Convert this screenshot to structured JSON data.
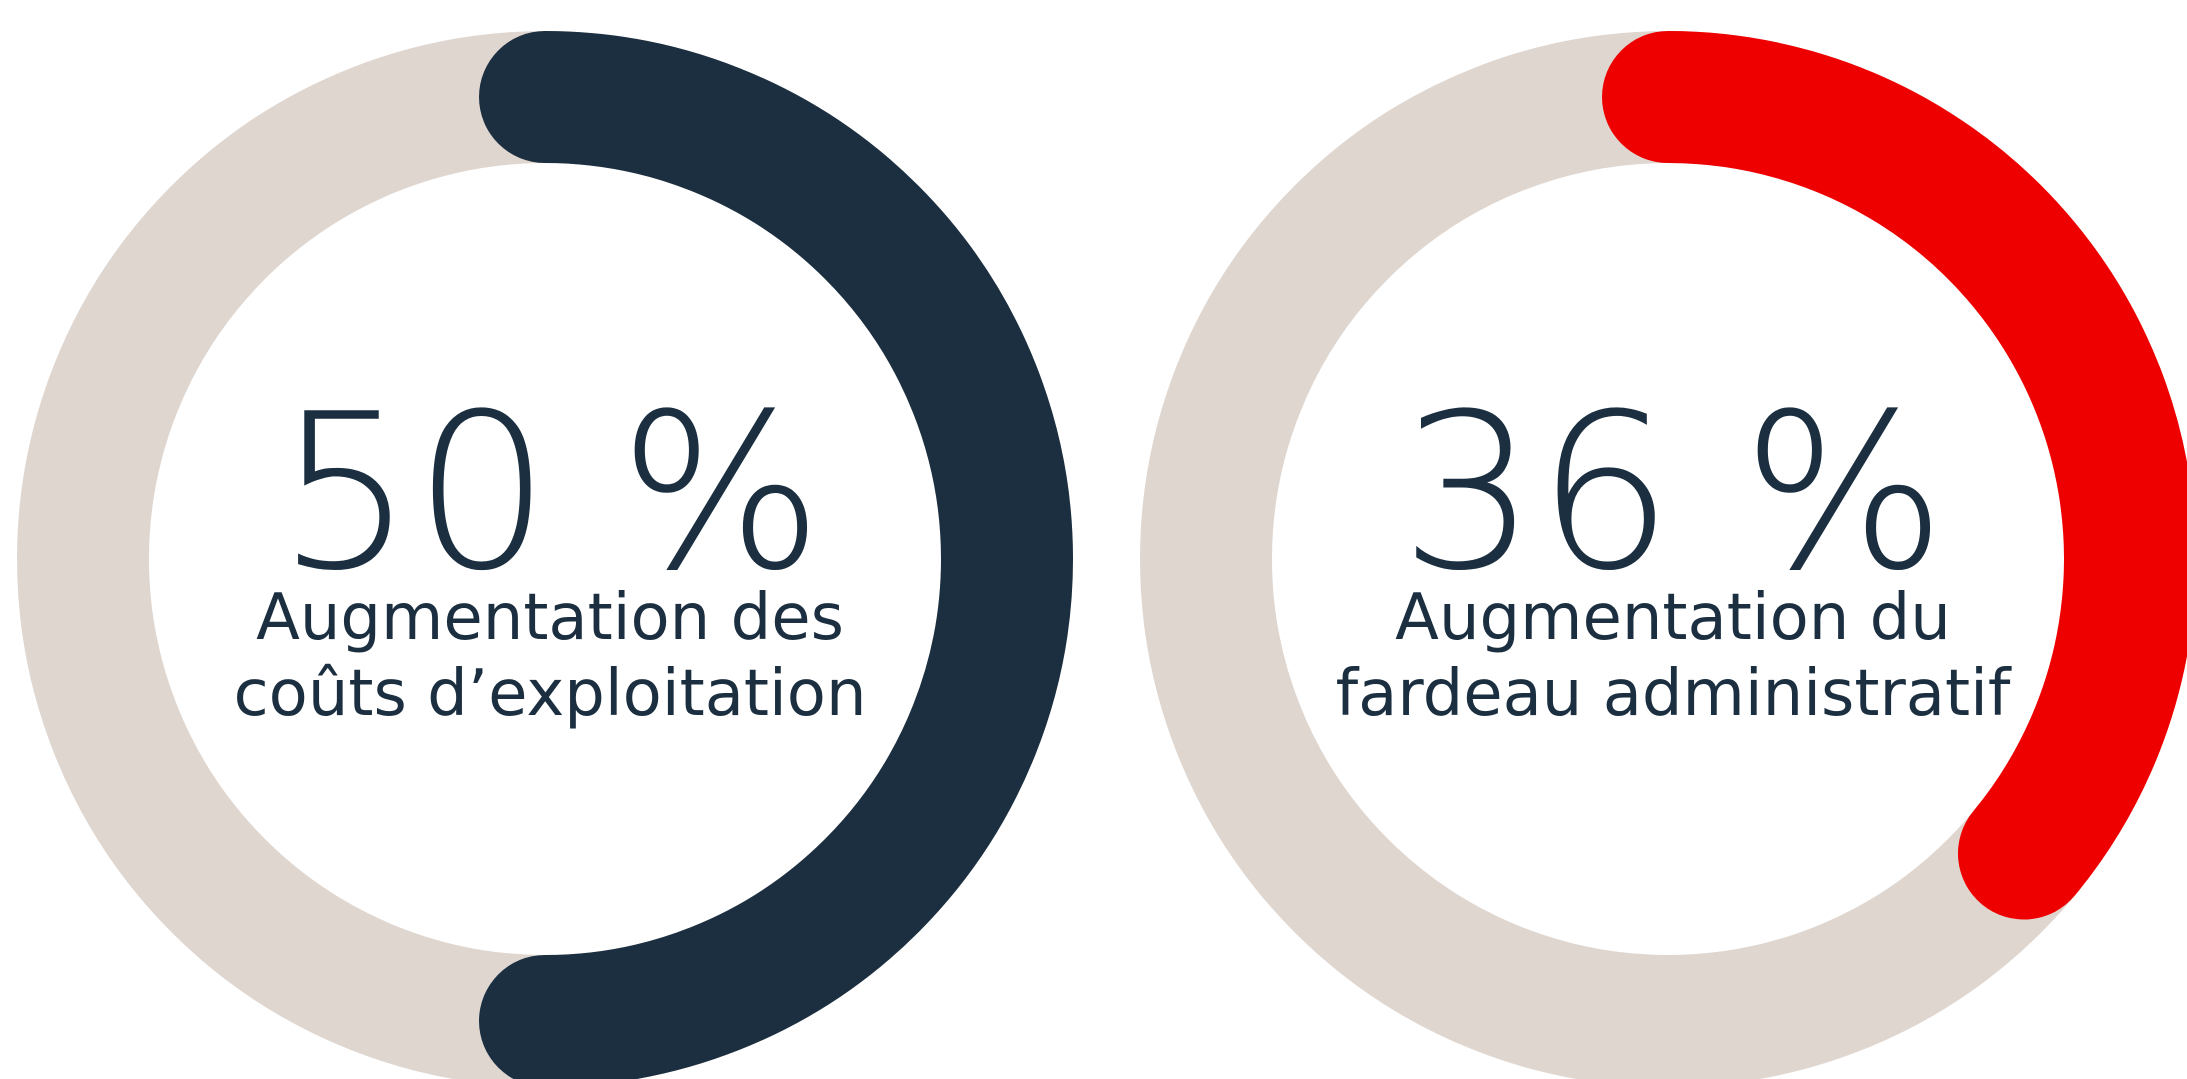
{
  "chart_data": [
    {
      "type": "donut",
      "values": [
        50
      ],
      "value_labels": [
        "50 %"
      ],
      "color": "#1b2f40",
      "track_color": "#dfd6d0",
      "label_lines": [
        "Augmentation des",
        "coûts d’exploitation"
      ]
    },
    {
      "type": "donut",
      "values": [
        36
      ],
      "value_labels": [
        "36 %"
      ],
      "color": "#ee0000",
      "track_color": "#dfd6d0",
      "label_lines": [
        "Augmentation du",
        "fardeau administratif"
      ]
    }
  ]
}
